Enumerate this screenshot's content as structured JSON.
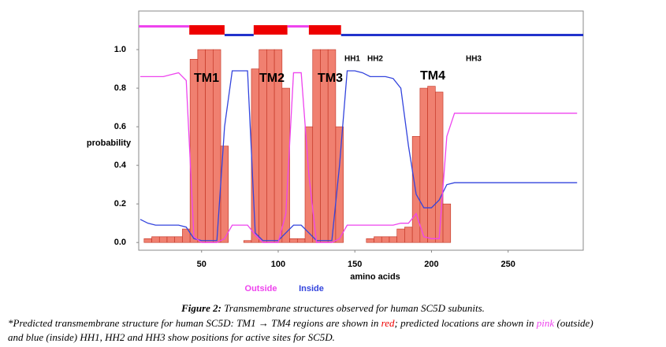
{
  "chart_data": {
    "type": "line",
    "x": [
      10,
      15,
      20,
      25,
      30,
      35,
      40,
      45,
      50,
      55,
      60,
      65,
      70,
      75,
      80,
      85,
      90,
      95,
      100,
      105,
      110,
      115,
      120,
      125,
      130,
      135,
      140,
      145,
      150,
      155,
      160,
      165,
      170,
      175,
      180,
      185,
      190,
      195,
      200,
      205,
      210,
      215,
      220,
      225,
      230,
      235,
      240,
      245,
      250,
      255,
      260,
      265,
      270,
      275,
      280,
      285,
      290,
      295
    ],
    "series": [
      {
        "kind": "bar",
        "color": "#f08070",
        "values": [
          0,
          0.02,
          0.03,
          0.03,
          0.03,
          0.03,
          0.07,
          0.95,
          1.0,
          1.0,
          1.0,
          0.5,
          0,
          0,
          0.01,
          0.9,
          1.0,
          1.0,
          1.0,
          0.8,
          0.02,
          0.02,
          0.6,
          1.0,
          1.0,
          1.0,
          0.6,
          0,
          0,
          0,
          0.02,
          0.03,
          0.03,
          0.03,
          0.07,
          0.08,
          0.55,
          0.8,
          0.81,
          0.78,
          0.2,
          0,
          0,
          0,
          0,
          0,
          0,
          0,
          0,
          0,
          0,
          0,
          0,
          0,
          0,
          0,
          0,
          0
        ]
      },
      {
        "name": "Inside",
        "color": "#3344dd",
        "values": [
          0.12,
          0.1,
          0.09,
          0.09,
          0.09,
          0.09,
          0.08,
          0.02,
          0.01,
          0.01,
          0.01,
          0.6,
          0.89,
          0.89,
          0.89,
          0.05,
          0.01,
          0.01,
          0.01,
          0.05,
          0.09,
          0.09,
          0.05,
          0.01,
          0.01,
          0.01,
          0.4,
          0.89,
          0.89,
          0.88,
          0.86,
          0.86,
          0.86,
          0.85,
          0.8,
          0.5,
          0.25,
          0.18,
          0.18,
          0.22,
          0.3,
          0.31,
          0.31,
          0.31,
          0.31,
          0.31,
          0.31,
          0.31,
          0.31,
          0.31,
          0.31,
          0.31,
          0.31,
          0.31,
          0.31,
          0.31,
          0.31,
          0.31
        ]
      },
      {
        "name": "Outside",
        "color": "#ee44ee",
        "values": [
          0.86,
          0.86,
          0.86,
          0.86,
          0.87,
          0.88,
          0.84,
          0.03,
          0,
          0,
          0,
          0.02,
          0.09,
          0.09,
          0.09,
          0.04,
          0,
          0,
          0,
          0.15,
          0.88,
          0.88,
          0.35,
          0,
          0,
          0,
          0.02,
          0.09,
          0.09,
          0.09,
          0.09,
          0.09,
          0.09,
          0.09,
          0.1,
          0.1,
          0.15,
          0.03,
          0.02,
          0.02,
          0.55,
          0.67,
          0.67,
          0.67,
          0.67,
          0.67,
          0.67,
          0.67,
          0.67,
          0.67,
          0.67,
          0.67,
          0.67,
          0.67,
          0.67,
          0.67,
          0.67,
          0.67
        ]
      }
    ],
    "topology": [
      {
        "start": 9,
        "end": 42,
        "color": "#ee44ee"
      },
      {
        "start": 42,
        "end": 65,
        "color": "#ee0000"
      },
      {
        "start": 65,
        "end": 84,
        "color": "#2233cc"
      },
      {
        "start": 84,
        "end": 106,
        "color": "#ee0000"
      },
      {
        "start": 106,
        "end": 120,
        "color": "#ee44ee"
      },
      {
        "start": 120,
        "end": 141,
        "color": "#ee0000"
      },
      {
        "start": 141,
        "end": 299,
        "color": "#2233cc"
      }
    ],
    "annotations": [
      "TM1",
      "TM2",
      "TM3",
      "TM4",
      "HH1",
      "HH2",
      "HH3"
    ],
    "xlabel": "amino acids",
    "ylabel": "probability",
    "xlim": [
      9,
      299
    ],
    "ylim": [
      -0.04,
      1.2
    ],
    "xticks": [
      50,
      100,
      150,
      200,
      250
    ],
    "yticks": [
      {
        "value": 0,
        "label": "0.0"
      },
      0.2,
      0.4,
      0.6,
      0.8,
      {
        "value": 1,
        "label": "1.0"
      }
    ]
  },
  "caption": {
    "label": "Figure 2:",
    "text": " Transmembrane structures observed for human SC5D subunits."
  },
  "note_lines": [
    [
      {
        "text": "*Predicted transmembrane structure for human SC5D: TM1 → TM4 regions are shown in "
      },
      {
        "text": "red",
        "color": "#ee0000"
      },
      {
        "text": "; predicted locations are shown in "
      },
      {
        "text": "pink",
        "color": "#ee44ee"
      },
      {
        "text": " (outside)"
      }
    ],
    [
      {
        "text": "and blue (inside) HH1, HH2 and HH3 show positions for active sites for SC5D."
      }
    ]
  ]
}
